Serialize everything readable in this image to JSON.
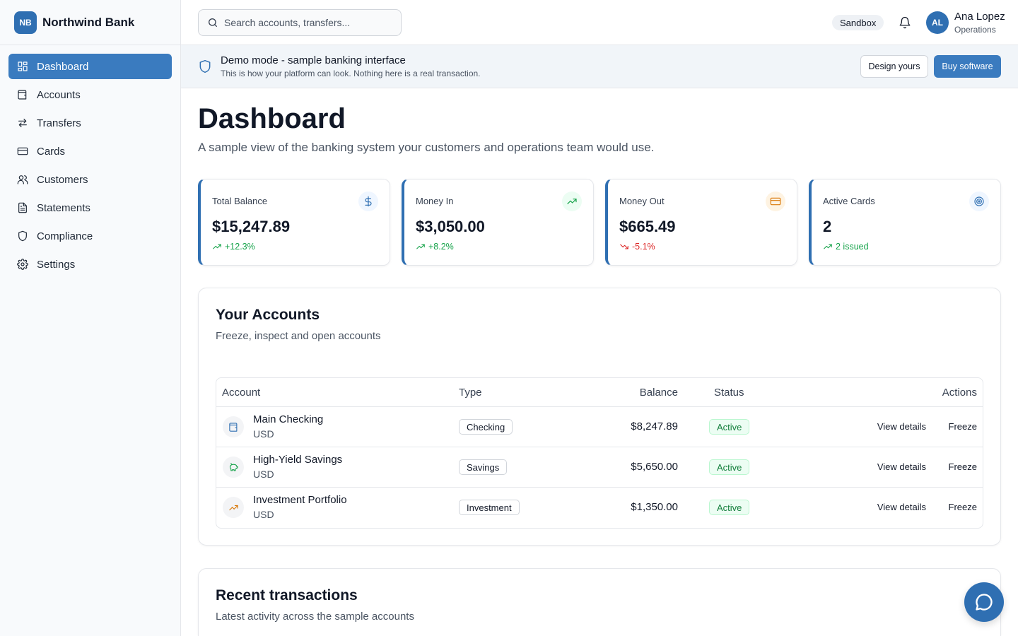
{
  "brand": {
    "logo": "NB",
    "name": "Northwind Bank"
  },
  "sidebar": {
    "items": [
      {
        "label": "Dashboard",
        "icon": "dashboard-icon",
        "active": true
      },
      {
        "label": "Accounts",
        "icon": "wallet-icon"
      },
      {
        "label": "Transfers",
        "icon": "transfer-arrows-icon"
      },
      {
        "label": "Cards",
        "icon": "credit-card-icon"
      },
      {
        "label": "Customers",
        "icon": "users-icon"
      },
      {
        "label": "Statements",
        "icon": "document-icon"
      },
      {
        "label": "Compliance",
        "icon": "shield-icon"
      },
      {
        "label": "Settings",
        "icon": "gear-icon"
      }
    ]
  },
  "topbar": {
    "search_placeholder": "Search accounts, transfers...",
    "env_badge": "Sandbox",
    "user": {
      "initials": "AL",
      "name": "Ana Lopez",
      "role": "Operations"
    }
  },
  "banner": {
    "title": "Demo mode - sample banking interface",
    "subtitle": "This is how your platform can look. Nothing here is a real transaction.",
    "design_label": "Design yours",
    "buy_label": "Buy software"
  },
  "page": {
    "title": "Dashboard",
    "subtitle": "A sample view of the banking system your customers and operations team would use."
  },
  "stats": [
    {
      "label": "Total Balance",
      "value": "$15,247.89",
      "delta": "+12.3%",
      "trend": "up",
      "icon": "dollar-icon",
      "icon_color": "#2f6fb2",
      "icon_bg": "#eff6ff"
    },
    {
      "label": "Money In",
      "value": "$3,050.00",
      "delta": "+8.2%",
      "trend": "up",
      "icon": "trending-up-icon",
      "icon_color": "#16a34a",
      "icon_bg": "#ecfdf3"
    },
    {
      "label": "Money Out",
      "value": "$665.49",
      "delta": "-5.1%",
      "trend": "down",
      "icon": "credit-card-icon",
      "icon_color": "#d97706",
      "icon_bg": "#fef3e2"
    },
    {
      "label": "Active Cards",
      "value": "2",
      "delta": "2 issued",
      "trend": "up",
      "icon": "target-icon",
      "icon_color": "#2f6fb2",
      "icon_bg": "#eff6ff"
    }
  ],
  "accounts": {
    "title": "Your Accounts",
    "subtitle": "Freeze, inspect and open accounts",
    "headers": {
      "account": "Account",
      "type": "Type",
      "balance": "Balance",
      "status": "Status",
      "actions": "Actions"
    },
    "rows": [
      {
        "name": "Main Checking",
        "currency": "USD",
        "type": "Checking",
        "balance": "$8,247.89",
        "status": "Active",
        "icon": "wallet-icon",
        "icon_color": "#2f6fb2",
        "view": "View details",
        "freeze": "Freeze"
      },
      {
        "name": "High-Yield Savings",
        "currency": "USD",
        "type": "Savings",
        "balance": "$5,650.00",
        "status": "Active",
        "icon": "piggy-bank-icon",
        "icon_color": "#16a34a",
        "view": "View details",
        "freeze": "Freeze"
      },
      {
        "name": "Investment Portfolio",
        "currency": "USD",
        "type": "Investment",
        "balance": "$1,350.00",
        "status": "Active",
        "icon": "trending-up-icon",
        "icon_color": "#d97706",
        "view": "View details",
        "freeze": "Freeze"
      }
    ]
  },
  "transactions": {
    "title": "Recent transactions",
    "subtitle": "Latest activity across the sample accounts"
  },
  "colors": {
    "accent": "#3a7bbf",
    "brand": "#2f6fb2",
    "positive": "#16a34a",
    "negative": "#dc2626"
  }
}
